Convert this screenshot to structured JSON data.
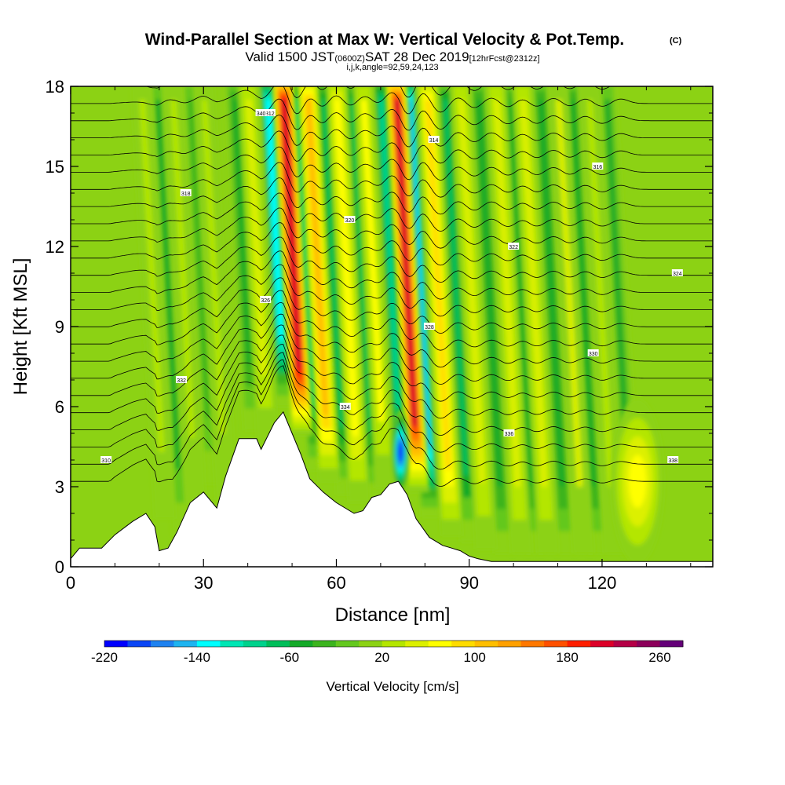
{
  "chart_data": {
    "type": "heatmap",
    "title": "Wind-Parallel Section at Max W: Vertical Velocity & Pot.Temp.",
    "title_mark": "(C)",
    "subtitle_main": "Valid 1500 JST",
    "subtitle_utc": "(0600Z)",
    "subtitle_date": "SAT 28 Dec 2019",
    "subtitle_fcst": "[12hrFcst@2312z]",
    "annotation": "i,j,k,angle=92,59,24,123",
    "xlabel": "Distance [nm]",
    "ylabel": "Height [Kft MSL]",
    "xlim": [
      0,
      145
    ],
    "ylim": [
      0,
      18
    ],
    "x_ticks": [
      0,
      30,
      60,
      90,
      120
    ],
    "y_ticks": [
      0,
      3,
      6,
      9,
      12,
      15,
      18
    ],
    "background_w": 5,
    "updraft_columns": [
      {
        "x": 19,
        "w": 30
      },
      {
        "x": 26,
        "w": 25
      },
      {
        "x": 33,
        "w": 20
      },
      {
        "x": 43,
        "w": 45
      },
      {
        "x": 51,
        "w": 215
      },
      {
        "x": 56.5,
        "w": 110
      },
      {
        "x": 63,
        "w": 70
      },
      {
        "x": 69,
        "w": 60
      },
      {
        "x": 76.5,
        "w": 200
      },
      {
        "x": 83.5,
        "w": 95
      },
      {
        "x": 91,
        "w": 55
      },
      {
        "x": 99,
        "w": 50
      },
      {
        "x": 105,
        "w": 45
      },
      {
        "x": 113,
        "w": 40
      },
      {
        "x": 120,
        "w": 35
      }
    ],
    "downdraft_columns": [
      {
        "x": 22.5,
        "w": -45
      },
      {
        "x": 30,
        "w": -40
      },
      {
        "x": 40,
        "w": -55
      },
      {
        "x": 47.5,
        "w": -130
      },
      {
        "x": 54,
        "w": -95
      },
      {
        "x": 60,
        "w": -80
      },
      {
        "x": 66.5,
        "w": -75
      },
      {
        "x": 73,
        "w": -90
      },
      {
        "x": 79,
        "w": -150
      },
      {
        "x": 87.5,
        "w": -70
      },
      {
        "x": 95,
        "w": -60
      },
      {
        "x": 102,
        "w": -60
      },
      {
        "x": 109,
        "w": -55
      },
      {
        "x": 116,
        "w": -55
      },
      {
        "x": 124,
        "w": -45
      }
    ],
    "lower_updraft_blob": {
      "x": 128,
      "y": 3.2,
      "w": 75
    },
    "lower_downdraft_core": {
      "x": 74.5,
      "y": 4.3,
      "w": -220
    },
    "terrain_height_kft": [
      [
        0,
        0.3
      ],
      [
        2,
        0.7
      ],
      [
        7,
        0.7
      ],
      [
        10,
        1.2
      ],
      [
        14,
        1.7
      ],
      [
        17,
        2.0
      ],
      [
        19,
        1.5
      ],
      [
        20,
        0.6
      ],
      [
        22,
        0.7
      ],
      [
        24,
        1.3
      ],
      [
        27,
        2.4
      ],
      [
        30,
        2.8
      ],
      [
        33,
        2.2
      ],
      [
        35,
        3.4
      ],
      [
        38,
        4.8
      ],
      [
        42,
        4.8
      ],
      [
        43,
        4.4
      ],
      [
        46,
        5.4
      ],
      [
        48,
        5.8
      ],
      [
        50,
        5.0
      ],
      [
        52,
        4.2
      ],
      [
        54,
        3.3
      ],
      [
        57,
        2.8
      ],
      [
        60,
        2.4
      ],
      [
        64,
        2.0
      ],
      [
        66,
        2.1
      ],
      [
        68,
        2.6
      ],
      [
        70,
        2.7
      ],
      [
        72,
        3.1
      ],
      [
        74,
        3.2
      ],
      [
        76,
        2.7
      ],
      [
        78,
        1.8
      ],
      [
        81,
        1.1
      ],
      [
        84,
        0.8
      ],
      [
        86,
        0.7
      ],
      [
        88,
        0.6
      ],
      [
        90,
        0.4
      ],
      [
        92,
        0.3
      ],
      [
        95,
        0.2
      ],
      [
        145,
        0.2
      ]
    ],
    "isentrope_count": 24,
    "isentrope_labels": [
      "310",
      "312",
      "314",
      "316",
      "318",
      "320",
      "322",
      "324",
      "326",
      "328",
      "330",
      "332",
      "334",
      "336",
      "338",
      "340"
    ]
  },
  "colorbar": {
    "label": "Vertical Velocity [cm/s]",
    "tick_labels": [
      "-220",
      "-140",
      "-60",
      "20",
      "100",
      "180",
      "260"
    ],
    "colors": [
      "#0000ff",
      "#0a46f5",
      "#1e82f0",
      "#1eb4f0",
      "#00ffff",
      "#00e6b4",
      "#00d28c",
      "#00be5a",
      "#14aa28",
      "#3cb41e",
      "#64c81e",
      "#8cd214",
      "#b4e600",
      "#dcf000",
      "#ffff00",
      "#ffdc00",
      "#ffbe00",
      "#ffa000",
      "#ff7800",
      "#ff5000",
      "#ff1e00",
      "#dc0028",
      "#b40046",
      "#8c005a",
      "#640078"
    ],
    "w_min": -220,
    "w_step": 20
  }
}
